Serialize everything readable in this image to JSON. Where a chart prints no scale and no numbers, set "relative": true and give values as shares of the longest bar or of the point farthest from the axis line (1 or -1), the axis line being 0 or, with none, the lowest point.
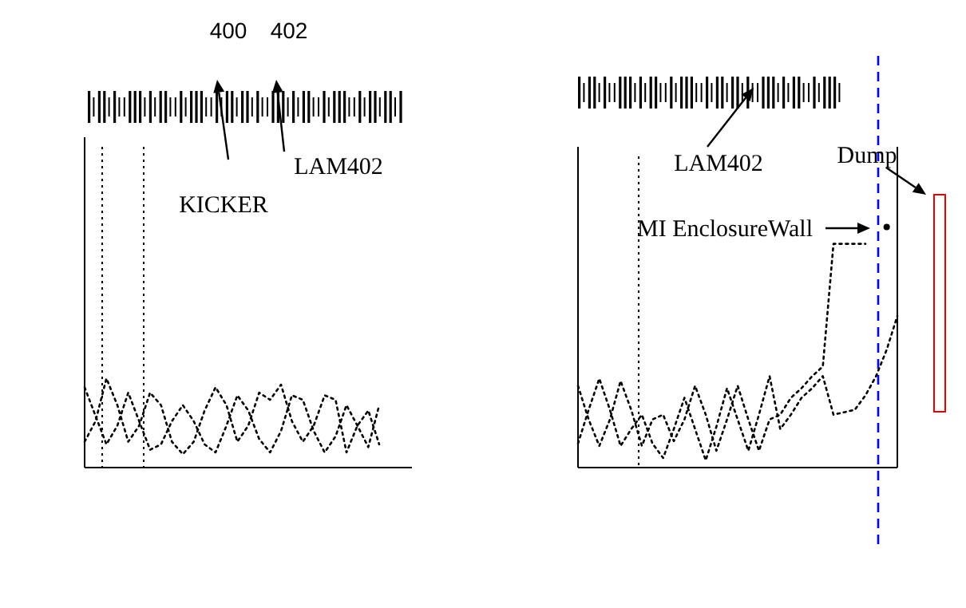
{
  "chart_data": [
    {
      "type": "line",
      "relative": true,
      "line_style": "dotted",
      "categories": [
        null,
        null,
        null,
        null,
        null,
        null,
        null,
        null,
        null,
        null,
        null,
        null,
        null,
        null,
        null,
        null,
        null,
        null,
        null,
        null,
        null,
        null,
        null,
        null,
        null,
        null,
        null,
        null,
        null,
        null,
        null
      ],
      "series": [
        {
          "color": "#000000",
          "values": [
            0.9,
            0.58,
            0.26,
            0.47,
            0.84,
            0.52,
            0.2,
            0.26,
            0.52,
            0.7,
            0.52,
            0.26,
            0.17,
            0.47,
            0.81,
            0.64,
            0.32,
            0.17,
            0.41,
            0.81,
            0.76,
            0.41,
            0.17,
            0.35,
            0.7,
            0.47,
            0.23,
            0.7,
            null,
            null,
            null
          ]
        },
        {
          "color": "#000000",
          "values": [
            0.29,
            0.52,
            1,
            0.7,
            0.29,
            0.47,
            0.84,
            0.7,
            0.29,
            0.15,
            0.29,
            0.64,
            0.9,
            0.7,
            0.29,
            0.47,
            0.84,
            0.76,
            0.93,
            0.52,
            0.29,
            0.47,
            0.81,
            0.76,
            0.17,
            0.47,
            0.64,
            0.26,
            null,
            null,
            null
          ]
        }
      ],
      "annotations": [
        "400",
        "402",
        "KICKER",
        "LAM402"
      ]
    },
    {
      "type": "line",
      "relative": true,
      "line_style": "dotted",
      "categories": [
        null,
        null,
        null,
        null,
        null,
        null,
        null,
        null,
        null,
        null,
        null,
        null,
        null,
        null,
        null,
        null,
        null,
        null,
        null,
        null,
        null,
        null,
        null,
        null,
        null,
        null,
        null,
        null,
        null,
        null,
        null
      ],
      "series": [
        {
          "color": "#000000",
          "values": [
            0.34,
            0.2,
            0.09,
            0.2,
            0.36,
            0.24,
            0.09,
            0.2,
            0.22,
            0.11,
            0.2,
            0.34,
            0.22,
            0.07,
            0.2,
            0.34,
            0.2,
            0.07,
            0.2,
            0.22,
            0.29,
            0.33,
            0.38,
            0.42,
            0.93,
            0.93,
            0.93,
            0.93,
            null,
            1,
            null
          ]
        },
        {
          "color": "#000000",
          "values": [
            0.1,
            0.24,
            0.37,
            0.24,
            0.09,
            0.16,
            0.22,
            0.1,
            0.04,
            0.16,
            0.29,
            0.16,
            0.03,
            0.17,
            0.33,
            0.2,
            0.07,
            0.22,
            0.38,
            0.16,
            0.22,
            0.29,
            0.33,
            0.38,
            0.22,
            0.23,
            0.24,
            0.3,
            0.38,
            0.49,
            0.63
          ]
        }
      ],
      "annotations": [
        "LAM402",
        "MI EnclosureWall",
        "Dump"
      ]
    }
  ]
}
